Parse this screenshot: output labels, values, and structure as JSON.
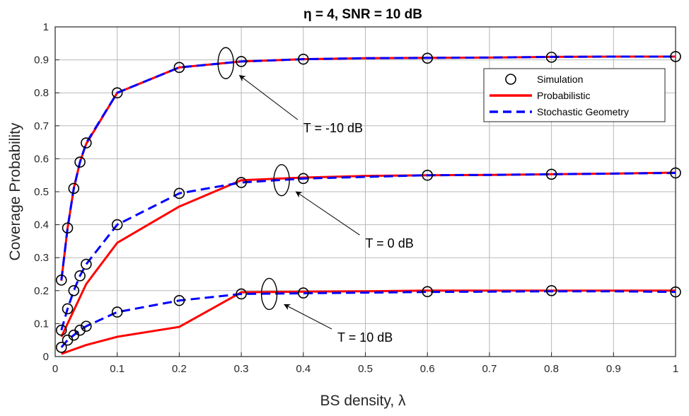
{
  "chart_data": {
    "type": "line",
    "title": "η = 4, SNR = 10 dB",
    "xlabel": "BS density, λ",
    "ylabel": "Coverage Probability",
    "xlim": [
      0,
      1
    ],
    "ylim": [
      0,
      1
    ],
    "xticks": [
      "0",
      "0.1",
      "0.2",
      "0.3",
      "0.4",
      "0.5",
      "0.6",
      "0.7",
      "0.8",
      "0.9",
      "1"
    ],
    "yticks": [
      "0",
      "0.1",
      "0.2",
      "0.3",
      "0.4",
      "0.5",
      "0.6",
      "0.7",
      "0.8",
      "0.9",
      "1"
    ],
    "grid": true,
    "legend_position": "top-right",
    "legend": [
      "Simulation",
      "Probabilistic",
      "Stochastic Geometry"
    ],
    "colors": {
      "simulation": "#000000",
      "probabilistic": "#ff0000",
      "stochastic": "#0000ff"
    },
    "groups": [
      {
        "annotation": "T = -10 dB",
        "simulation": {
          "x": [
            0.01,
            0.02,
            0.03,
            0.04,
            0.05,
            0.1,
            0.2,
            0.3,
            0.4,
            0.6,
            0.8,
            1.0
          ],
          "y": [
            0.232,
            0.39,
            0.51,
            0.59,
            0.648,
            0.8,
            0.877,
            0.895,
            0.902,
            0.905,
            0.908,
            0.91
          ]
        },
        "probabilistic": {
          "x": [
            0.01,
            0.02,
            0.03,
            0.04,
            0.05,
            0.1,
            0.2,
            0.3,
            0.4,
            0.5,
            0.6,
            0.7,
            0.8,
            0.9,
            1.0
          ],
          "y": [
            0.23,
            0.39,
            0.51,
            0.59,
            0.645,
            0.8,
            0.877,
            0.895,
            0.902,
            0.905,
            0.906,
            0.907,
            0.909,
            0.91,
            0.91
          ]
        },
        "stochastic": {
          "x": [
            0.01,
            0.02,
            0.03,
            0.04,
            0.05,
            0.1,
            0.2,
            0.3,
            0.4,
            0.5,
            0.6,
            0.7,
            0.8,
            0.9,
            1.0
          ],
          "y": [
            0.232,
            0.39,
            0.51,
            0.59,
            0.648,
            0.8,
            0.877,
            0.895,
            0.902,
            0.905,
            0.906,
            0.907,
            0.909,
            0.91,
            0.91
          ]
        }
      },
      {
        "annotation": "T = 0 dB",
        "simulation": {
          "x": [
            0.01,
            0.02,
            0.03,
            0.04,
            0.05,
            0.1,
            0.2,
            0.3,
            0.4,
            0.6,
            0.8,
            1.0
          ],
          "y": [
            0.08,
            0.145,
            0.2,
            0.245,
            0.28,
            0.4,
            0.495,
            0.528,
            0.54,
            0.55,
            0.553,
            0.557
          ]
        },
        "probabilistic": {
          "x": [
            0.01,
            0.02,
            0.05,
            0.1,
            0.2,
            0.3,
            0.4,
            0.5,
            0.6,
            0.7,
            0.8,
            0.9,
            1.0
          ],
          "y": [
            0.06,
            0.1,
            0.22,
            0.345,
            0.455,
            0.535,
            0.543,
            0.548,
            0.55,
            0.551,
            0.553,
            0.555,
            0.558
          ]
        },
        "stochastic": {
          "x": [
            0.01,
            0.02,
            0.03,
            0.04,
            0.05,
            0.1,
            0.2,
            0.3,
            0.4,
            0.5,
            0.6,
            0.7,
            0.8,
            0.9,
            1.0
          ],
          "y": [
            0.08,
            0.145,
            0.2,
            0.245,
            0.28,
            0.4,
            0.495,
            0.528,
            0.54,
            0.545,
            0.55,
            0.551,
            0.553,
            0.555,
            0.557
          ]
        }
      },
      {
        "annotation": "T = 10 dB",
        "simulation": {
          "x": [
            0.01,
            0.02,
            0.03,
            0.04,
            0.05,
            0.1,
            0.2,
            0.3,
            0.4,
            0.6,
            0.8,
            1.0
          ],
          "y": [
            0.028,
            0.05,
            0.065,
            0.08,
            0.092,
            0.135,
            0.17,
            0.19,
            0.193,
            0.197,
            0.2,
            0.196
          ]
        },
        "probabilistic": {
          "x": [
            0.01,
            0.02,
            0.05,
            0.1,
            0.2,
            0.3,
            0.4,
            0.5,
            0.6,
            0.7,
            0.8,
            0.9,
            1.0
          ],
          "y": [
            0.008,
            0.015,
            0.035,
            0.06,
            0.09,
            0.195,
            0.197,
            0.198,
            0.2,
            0.2,
            0.2,
            0.2,
            0.2
          ]
        },
        "stochastic": {
          "x": [
            0.01,
            0.02,
            0.03,
            0.04,
            0.05,
            0.1,
            0.2,
            0.3,
            0.4,
            0.5,
            0.6,
            0.7,
            0.8,
            0.9,
            1.0
          ],
          "y": [
            0.028,
            0.05,
            0.065,
            0.08,
            0.092,
            0.135,
            0.17,
            0.19,
            0.192,
            0.194,
            0.196,
            0.197,
            0.198,
            0.198,
            0.196
          ]
        }
      }
    ],
    "annotations": [
      {
        "text": "T = -10 dB",
        "ellipse_at": [
          0.275,
          0.89
        ],
        "label_at": [
          0.4,
          0.68
        ]
      },
      {
        "text": "T = 0 dB",
        "ellipse_at": [
          0.365,
          0.535
        ],
        "label_at": [
          0.5,
          0.33
        ]
      },
      {
        "text": "T = 10 dB",
        "ellipse_at": [
          0.345,
          0.19
        ],
        "label_at": [
          0.455,
          0.045
        ]
      }
    ]
  }
}
